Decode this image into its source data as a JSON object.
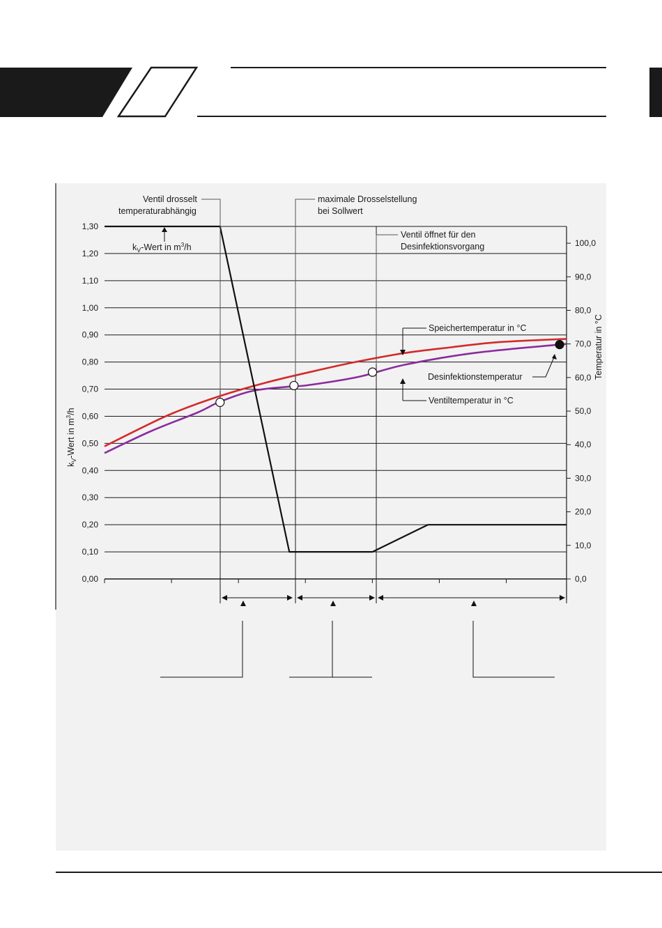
{
  "colors": {
    "header_dark": "#1a1a1a",
    "panel_bg": "#f2f2f2",
    "speicher": "#d42a2a",
    "ventil": "#8a2c9c",
    "kv": "#111111"
  },
  "chart_data": {
    "type": "line",
    "title": "",
    "ylabel_left": "kV-Wert in m³/h",
    "ylabel_right": "Temperatur in °C",
    "y_left_range": [
      0,
      1.3
    ],
    "y_right_range": [
      0,
      105
    ],
    "x_range": [
      0,
      10
    ],
    "y_left_ticks": [
      "0,00",
      "0,10",
      "0,20",
      "0,30",
      "0,40",
      "0,50",
      "0,60",
      "0,70",
      "0,80",
      "0,90",
      "1,00",
      "1,10",
      "1,20",
      "1,30"
    ],
    "y_right_ticks": [
      "0,0",
      "10,0",
      "20,0",
      "30,0",
      "40,0",
      "50,0",
      "60,0",
      "70,0",
      "80,0",
      "90,0",
      "100,0"
    ],
    "grid": true,
    "series": [
      {
        "name": "Speichertemperatur in °C",
        "axis": "right",
        "points": [
          [
            0,
            39.5
          ],
          [
            0.8,
            45
          ],
          [
            1.5,
            49.5
          ],
          [
            2.5,
            54.5
          ],
          [
            3.5,
            58.5
          ],
          [
            4.5,
            61.8
          ],
          [
            5.5,
            64.8
          ],
          [
            6.5,
            67.3
          ],
          [
            7.5,
            69
          ],
          [
            8.5,
            70.5
          ],
          [
            10,
            71.5
          ]
        ]
      },
      {
        "name": "Ventiltemperatur in °C",
        "axis": "right",
        "points": [
          [
            0,
            37.5
          ],
          [
            1.0,
            44
          ],
          [
            2.0,
            49.5
          ],
          [
            2.5,
            52.8
          ],
          [
            3.2,
            56
          ],
          [
            4.0,
            57.3
          ],
          [
            4.4,
            57.7
          ],
          [
            5.5,
            60.2
          ],
          [
            6.5,
            63.8
          ],
          [
            8.0,
            67.3
          ],
          [
            10,
            70
          ]
        ]
      },
      {
        "name": "kV-Wert in m³/h",
        "axis": "left",
        "points": [
          [
            0,
            1.3
          ],
          [
            2.5,
            1.3
          ],
          [
            4.0,
            0.1
          ],
          [
            5.8,
            0.1
          ],
          [
            7.0,
            0.2
          ],
          [
            10,
            0.2
          ]
        ]
      }
    ],
    "markers": [
      {
        "x": 2.5,
        "y": 52.6,
        "type": "open-circle"
      },
      {
        "x": 4.1,
        "y": 57.6,
        "type": "open-circle"
      },
      {
        "x": 5.8,
        "y": 61.6,
        "type": "open-circle"
      },
      {
        "x": 9.85,
        "y": 69.8,
        "type": "filled-circle"
      }
    ],
    "annotations": {
      "ventil_drosselt_l1": "Ventil drosselt",
      "ventil_drosselt_l2": "temperaturabhängig",
      "max_drossel_l1": "maximale Drosselstellung",
      "max_drossel_l2": "bei Sollwert",
      "ventil_oeffnet_l1": "Ventil öffnet für den",
      "ventil_oeffnet_l2": "Desinfektionsvorgang",
      "kv_inline_prefix": "k",
      "kv_inline_sub": "V",
      "kv_inline_rest": "-Wert in m",
      "kv_inline_sup": "3",
      "kv_inline_end": "/h",
      "speicher_label": "Speichertemperatur in °C",
      "desinfektion_label": "Desinfektionstemperatur",
      "ventil_label": "Ventiltemperatur in °C"
    },
    "ylabel_left_parts": {
      "prefix": "k",
      "sub": "V",
      "rest": "-Wert in m",
      "sup": "3",
      "end": "/h"
    }
  }
}
